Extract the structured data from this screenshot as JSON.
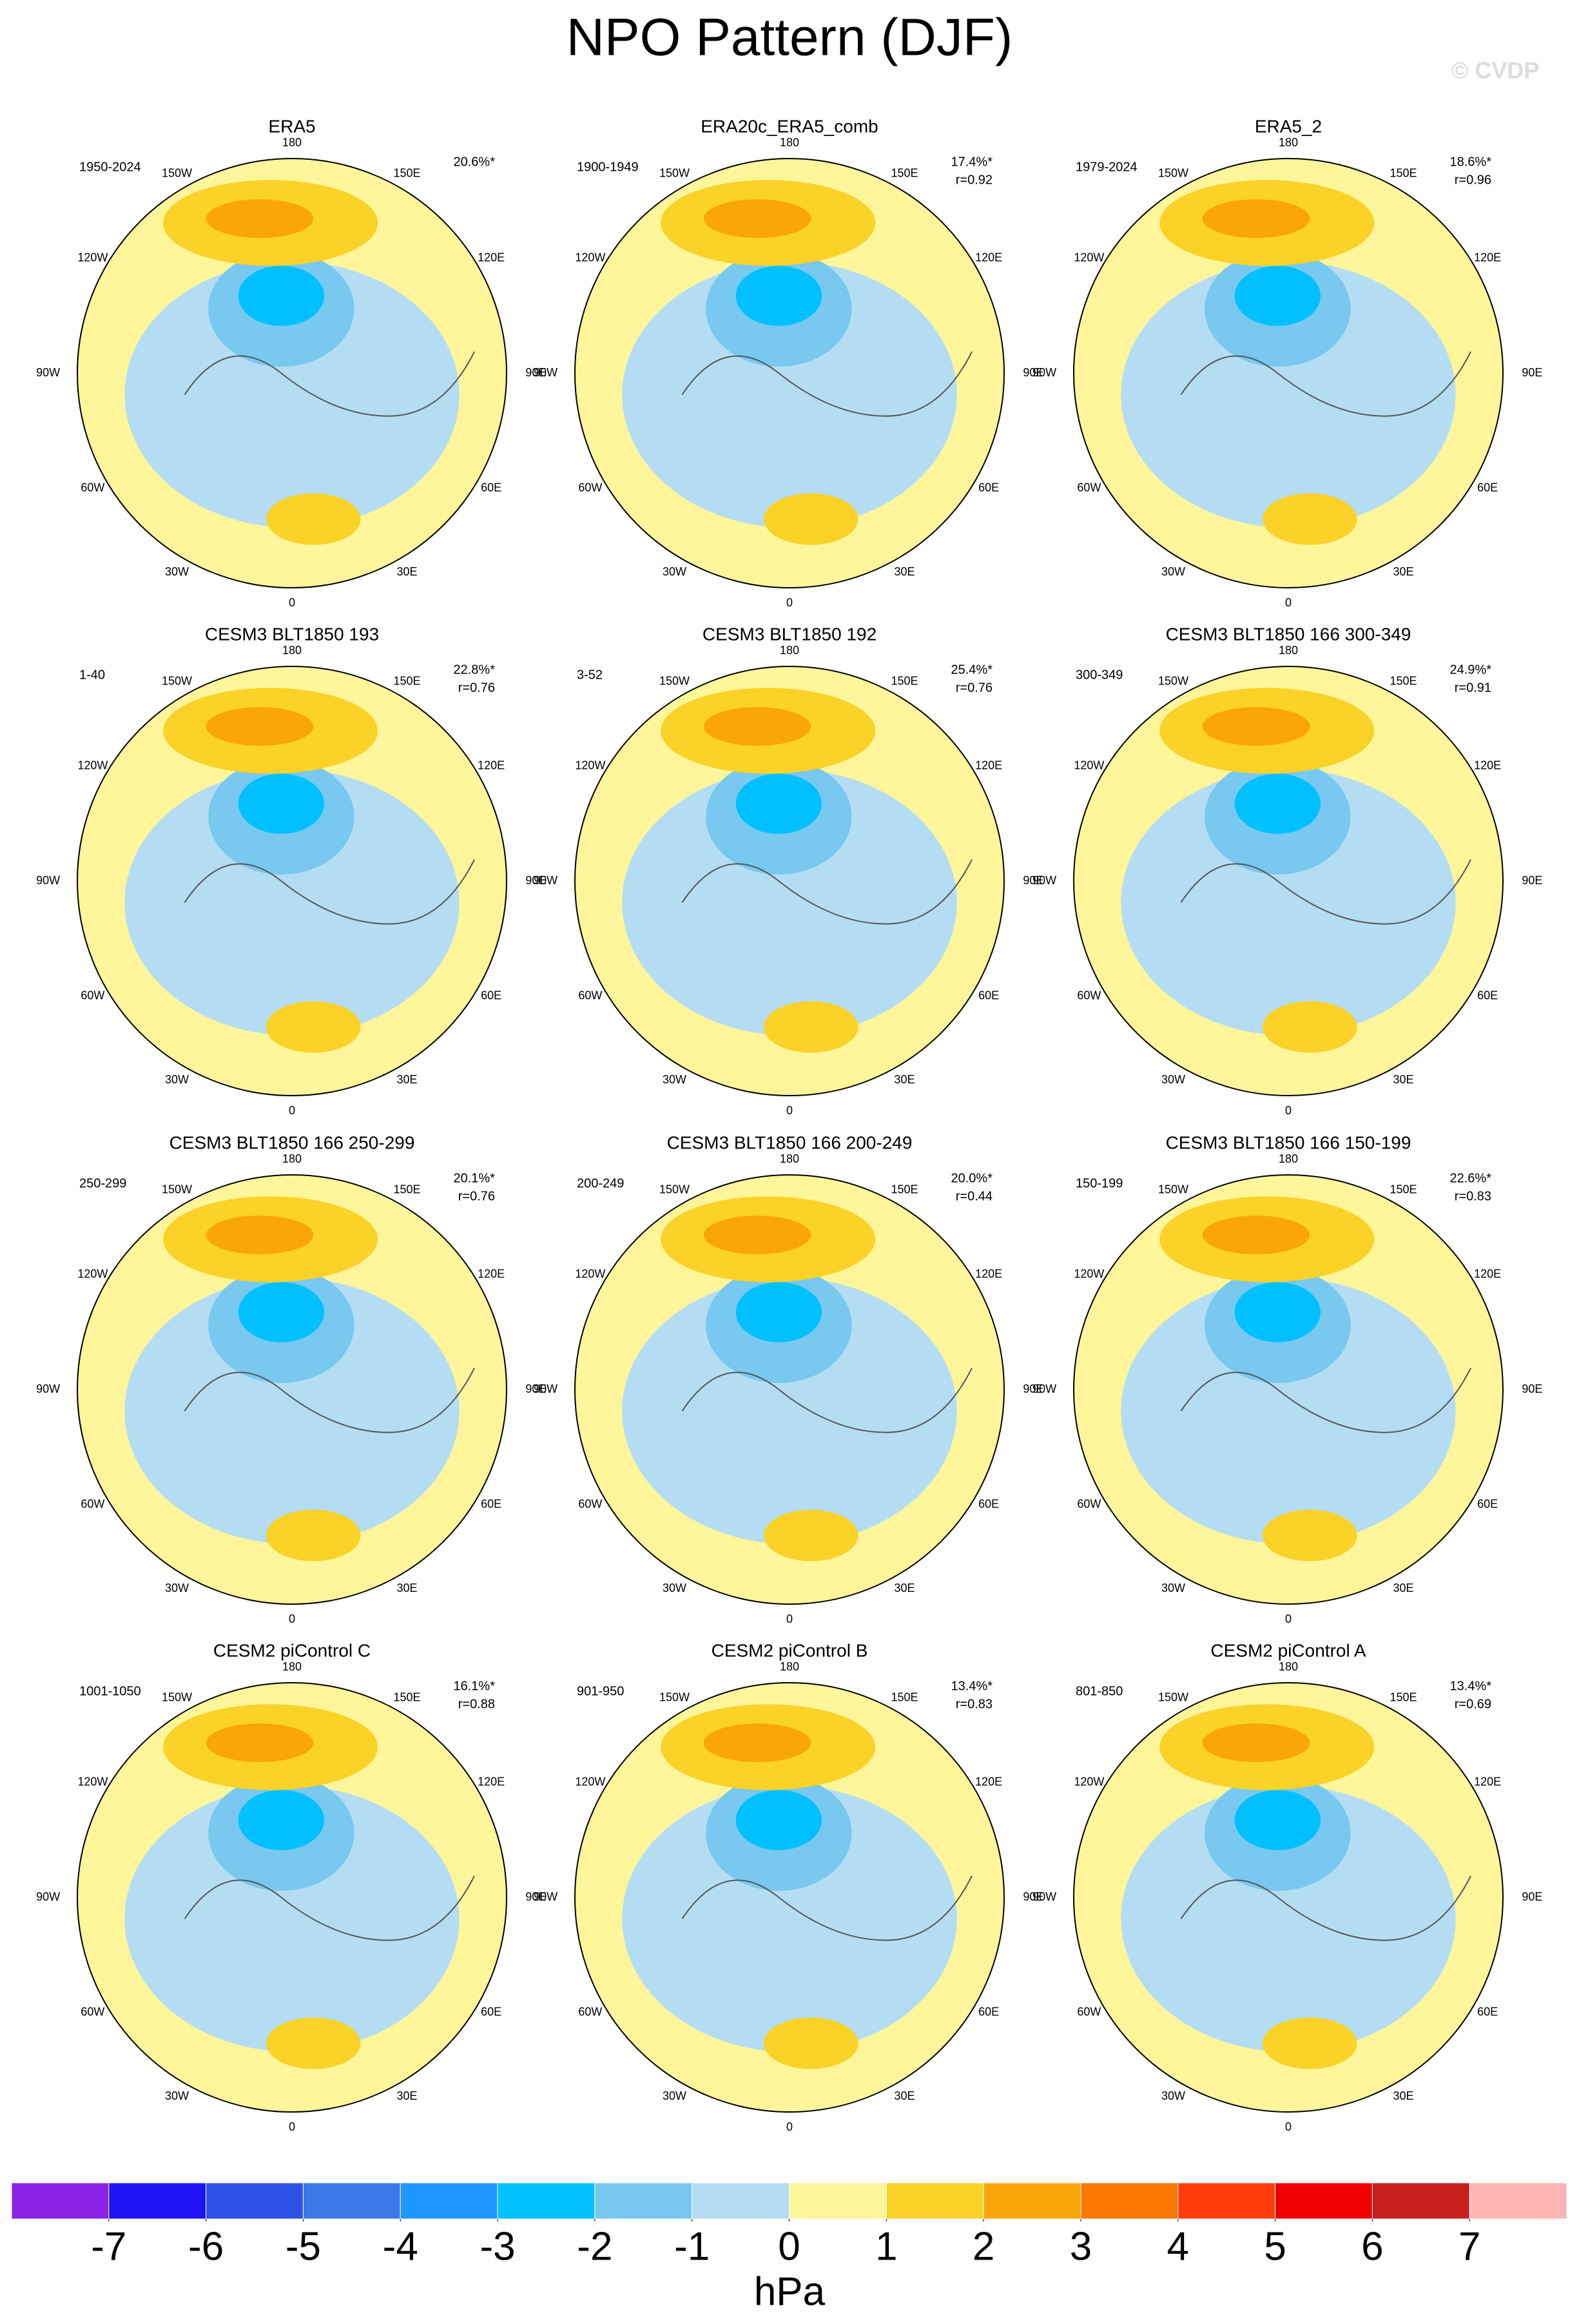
{
  "title": "NPO Pattern (DJF)",
  "watermark": "© CVDP",
  "lon_labels": [
    "180",
    "150E",
    "120E",
    "90E",
    "60E",
    "30E",
    "0",
    "30W",
    "60W",
    "90W",
    "120W",
    "150W"
  ],
  "panels": [
    {
      "title": "ERA5",
      "period": "1950-2024",
      "pct": "20.6%*"
    },
    {
      "title": "ERA20c_ERA5_comb",
      "period": "1900-1949",
      "pct": "17.4%*",
      "r": "r=0.92"
    },
    {
      "title": "ERA5_2",
      "period": "1979-2024",
      "pct": "18.6%*",
      "r": "r=0.96"
    },
    {
      "title": "CESM3 BLT1850 193",
      "period": "1-40",
      "pct": "22.8%*",
      "r": "r=0.76"
    },
    {
      "title": "CESM3 BLT1850 192",
      "period": "3-52",
      "pct": "25.4%*",
      "r": "r=0.76"
    },
    {
      "title": "CESM3 BLT1850 166 300-349",
      "period": "300-349",
      "pct": "24.9%*",
      "r": "r=0.91"
    },
    {
      "title": "CESM3 BLT1850 166 250-299",
      "period": "250-299",
      "pct": "20.1%*",
      "r": "r=0.76"
    },
    {
      "title": "CESM3 BLT1850 166 200-249",
      "period": "200-249",
      "pct": "20.0%*",
      "r": "r=0.44"
    },
    {
      "title": "CESM3 BLT1850 166 150-199",
      "period": "150-199",
      "pct": "22.6%*",
      "r": "r=0.83"
    },
    {
      "title": "CESM2 piControl C",
      "period": "1001-1050",
      "pct": "16.1%*",
      "r": "r=0.88"
    },
    {
      "title": "CESM2 piControl B",
      "period": "901-950",
      "pct": "13.4%*",
      "r": "r=0.83"
    },
    {
      "title": "CESM2 piControl A",
      "period": "801-850",
      "pct": "13.4%*",
      "r": "r=0.69"
    }
  ],
  "colorbar": {
    "ticks": [
      -7,
      -6,
      -5,
      -4,
      -3,
      -2,
      -1,
      0,
      1,
      2,
      3,
      4,
      5,
      6,
      7
    ],
    "colors": [
      "#8a22e6",
      "#1e14f5",
      "#2d50e6",
      "#3c78e6",
      "#1e96ff",
      "#00c0ff",
      "#78c8f0",
      "#b4ddf4",
      "#fff59b",
      "#fad228",
      "#faa50a",
      "#fa7800",
      "#ff3c0a",
      "#f00000",
      "#c81e1e",
      "#ffb4b4"
    ],
    "unit": "hPa"
  }
}
